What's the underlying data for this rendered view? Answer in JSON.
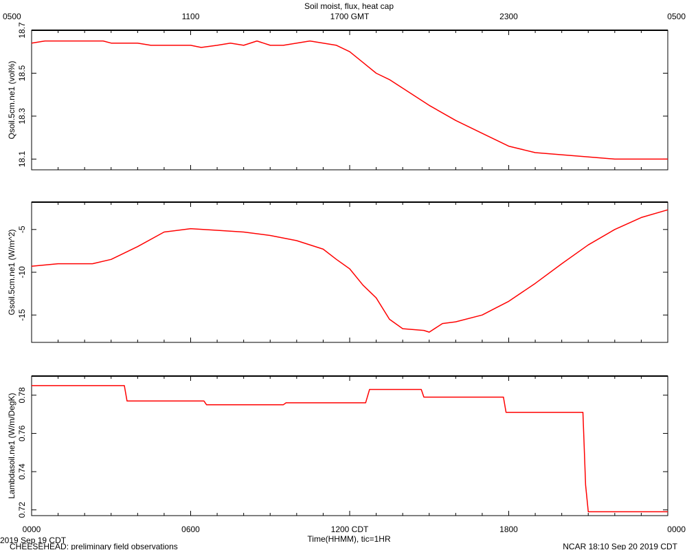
{
  "chart_data": {
    "title": "Soil moist, flux, heat cap",
    "top_axis_ticks": [
      {
        "hour": 0,
        "label": "0500"
      },
      {
        "hour": 6,
        "label": "1100"
      },
      {
        "hour": 12,
        "label": "1700 GMT"
      },
      {
        "hour": 18,
        "label": "2300"
      },
      {
        "hour": 24,
        "label": "0500"
      }
    ],
    "bottom_axis_ticks": [
      {
        "hour": 0,
        "label": "0000"
      },
      {
        "hour": 6,
        "label": "0600"
      },
      {
        "hour": 12,
        "label": "1200 CDT"
      },
      {
        "hour": 18,
        "label": "1800"
      },
      {
        "hour": 24,
        "label": "0000"
      }
    ],
    "xlabel": "Time(HHMM), tic=1HR",
    "date_label": "2019 Sep 19 CDT",
    "footer_left": "CHEESEHEAD: preliminary field observations",
    "footer_right": "NCAR 18:10 Sep 20 2019 CDT",
    "line_color": "#ff0000",
    "panels": [
      {
        "type": "line",
        "ylabel": "Qsoil.5cm.ne1 (vol%)",
        "ylim": [
          18.05,
          18.7
        ],
        "yticks": [
          18.1,
          18.3,
          18.5,
          18.7
        ],
        "ytick_labels": [
          "18.1",
          "18.3",
          "18.5",
          "18.7"
        ],
        "x_hours": [
          0,
          0.5,
          1,
          2,
          2.7,
          3,
          4,
          4.5,
          5,
          6,
          6.4,
          7,
          7.5,
          8,
          8.5,
          9,
          9.5,
          10,
          10.5,
          11,
          11.5,
          12,
          12.5,
          13,
          13.5,
          14,
          15,
          16,
          17,
          18,
          19,
          20,
          21,
          22,
          23,
          24
        ],
        "y": [
          18.64,
          18.65,
          18.65,
          18.65,
          18.65,
          18.64,
          18.64,
          18.63,
          18.63,
          18.63,
          18.62,
          18.63,
          18.64,
          18.63,
          18.65,
          18.63,
          18.63,
          18.64,
          18.65,
          18.64,
          18.63,
          18.6,
          18.55,
          18.5,
          18.47,
          18.43,
          18.35,
          18.28,
          18.22,
          18.16,
          18.13,
          18.12,
          18.11,
          18.1,
          18.1,
          18.1
        ]
      },
      {
        "type": "line",
        "ylabel": "Gsoil.5cm.ne1 (W/m^2)",
        "ylim": [
          -18.2,
          -1.8
        ],
        "yticks": [
          -15,
          -10,
          -5
        ],
        "ytick_labels": [
          "-15",
          "-10",
          "-5"
        ],
        "x_hours": [
          0,
          1,
          2,
          2.3,
          3,
          4,
          5,
          6,
          7,
          8,
          9,
          10,
          11,
          11.5,
          12,
          12.5,
          13,
          13.5,
          14,
          14.8,
          15,
          15.5,
          16,
          17,
          17.5,
          18,
          19,
          20,
          21,
          22,
          23,
          24
        ],
        "y": [
          -9.3,
          -9.0,
          -9.0,
          -9.0,
          -8.5,
          -7.0,
          -5.3,
          -4.9,
          -5.1,
          -5.3,
          -5.7,
          -6.3,
          -7.3,
          -8.5,
          -9.6,
          -11.5,
          -13.0,
          -15.5,
          -16.6,
          -16.8,
          -17.0,
          -16.0,
          -15.8,
          -15.0,
          -14.2,
          -13.4,
          -11.3,
          -9.0,
          -6.8,
          -5.0,
          -3.6,
          -2.7
        ]
      },
      {
        "type": "line",
        "ylabel": "Lambdasoil.ne1 (W/m/DegK)",
        "ylim": [
          0.717,
          0.79
        ],
        "yticks": [
          0.72,
          0.74,
          0.76,
          0.78
        ],
        "ytick_labels": [
          "0.72",
          "0.74",
          "0.76",
          "0.78"
        ],
        "x_hours": [
          0,
          3.5,
          3.6,
          6.5,
          6.6,
          9.5,
          9.6,
          12.6,
          12.75,
          14.7,
          14.8,
          17.8,
          17.9,
          20.8,
          20.9,
          21.0,
          24
        ],
        "y": [
          0.785,
          0.785,
          0.777,
          0.777,
          0.775,
          0.775,
          0.776,
          0.776,
          0.783,
          0.783,
          0.779,
          0.779,
          0.771,
          0.771,
          0.733,
          0.719,
          0.719
        ]
      }
    ]
  }
}
